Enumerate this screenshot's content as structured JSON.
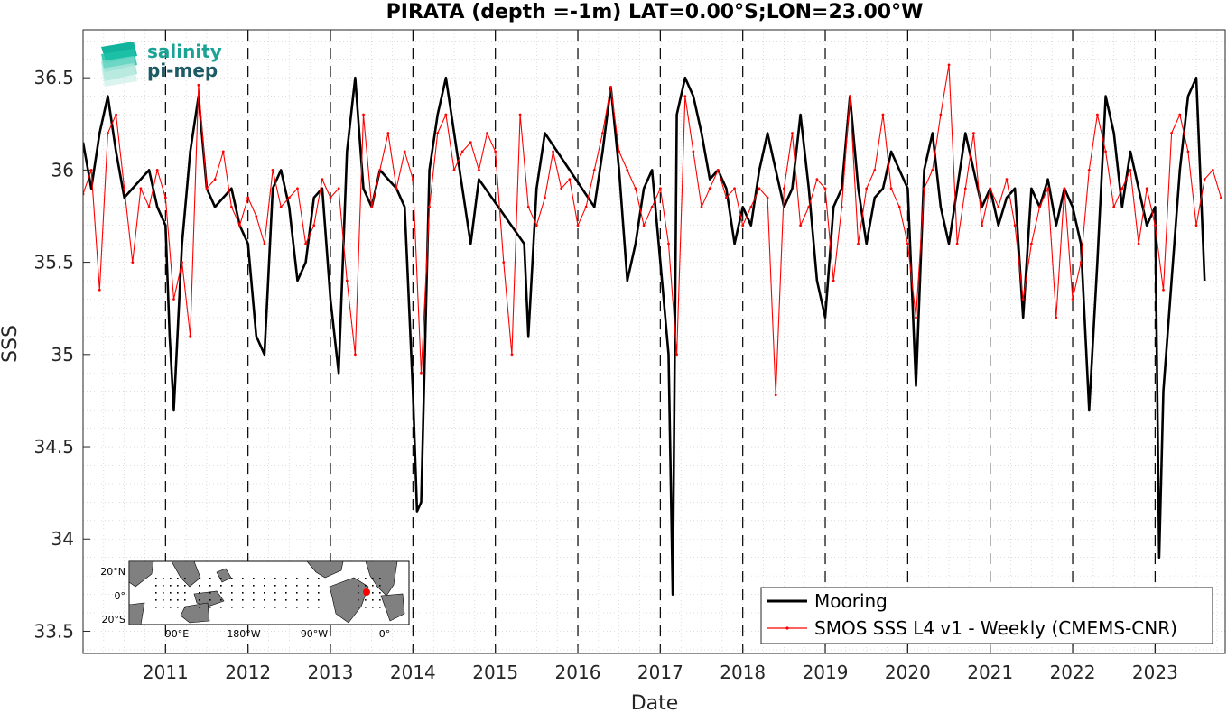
{
  "chart_data": {
    "type": "line",
    "title": "PIRATA (depth =-1m) LAT=0.00°S;LON=23.00°W",
    "xlabel": "Date",
    "ylabel": "SSS",
    "xlim": [
      2010.0,
      2023.85
    ],
    "ylim": [
      33.38,
      36.76
    ],
    "x_ticks": [
      2011,
      2012,
      2013,
      2014,
      2015,
      2016,
      2017,
      2018,
      2019,
      2020,
      2021,
      2022,
      2023
    ],
    "x_tick_labels": [
      "2011",
      "2012",
      "2013",
      "2014",
      "2015",
      "2016",
      "2017",
      "2018",
      "2019",
      "2020",
      "2021",
      "2022",
      "2023"
    ],
    "y_ticks": [
      33.5,
      34,
      34.5,
      35,
      35.5,
      36,
      36.5
    ],
    "y_tick_labels": [
      "33.5",
      "34",
      "34.5",
      "35",
      "35.5",
      "36",
      "36.5"
    ],
    "grid": "on (minor dotted grid, dashed black lines at each year)",
    "legend_position": "bottom-right",
    "series": [
      {
        "name": "Mooring",
        "color": "#000000",
        "x": [
          2010.0,
          2010.1,
          2010.2,
          2010.3,
          2010.4,
          2010.5,
          2010.6,
          2010.7,
          2010.8,
          2010.9,
          2011.0,
          2011.05,
          2011.1,
          2011.2,
          2011.3,
          2011.4,
          2011.5,
          2011.6,
          2011.7,
          2011.8,
          2011.9,
          2012.0,
          2012.1,
          2012.2,
          2012.3,
          2012.4,
          2012.5,
          2012.6,
          2012.7,
          2012.8,
          2012.9,
          2013.0,
          2013.1,
          2013.2,
          2013.3,
          2013.4,
          2013.5,
          2013.6,
          2013.7,
          2013.8,
          2013.9,
          2014.0,
          2014.05,
          2014.1,
          2014.2,
          2014.3,
          2014.4,
          2014.5,
          2014.6,
          2014.7,
          2014.8,
          2015.35,
          2015.4,
          2015.5,
          2015.6,
          2016.2,
          2016.3,
          2016.4,
          2016.5,
          2016.6,
          2016.7,
          2016.8,
          2016.9,
          2017.0,
          2017.1,
          2017.15,
          2017.2,
          2017.3,
          2017.4,
          2017.5,
          2017.6,
          2017.7,
          2017.8,
          2017.9,
          2018.0,
          2018.1,
          2018.2,
          2018.3,
          2018.4,
          2018.5,
          2018.6,
          2018.7,
          2018.8,
          2018.9,
          2019.0,
          2019.1,
          2019.2,
          2019.3,
          2019.4,
          2019.5,
          2019.6,
          2019.7,
          2019.8,
          2019.9,
          2020.0,
          2020.1,
          2020.2,
          2020.3,
          2020.4,
          2020.5,
          2020.6,
          2020.7,
          2020.8,
          2020.9,
          2021.0,
          2021.1,
          2021.2,
          2021.3,
          2021.4,
          2021.5,
          2021.6,
          2021.7,
          2021.8,
          2021.9,
          2022.0,
          2022.1,
          2022.2,
          2022.3,
          2022.4,
          2022.5,
          2022.6,
          2022.7,
          2022.8,
          2022.9,
          2023.0,
          2023.05,
          2023.1,
          2023.2,
          2023.3,
          2023.4,
          2023.5,
          2023.6
        ],
        "y": [
          36.15,
          35.9,
          36.2,
          36.4,
          36.1,
          35.85,
          35.9,
          35.95,
          36.0,
          35.8,
          35.7,
          35.1,
          34.7,
          35.6,
          36.1,
          36.4,
          35.9,
          35.8,
          35.85,
          35.9,
          35.7,
          35.6,
          35.1,
          35.0,
          35.9,
          36.0,
          35.8,
          35.4,
          35.5,
          35.85,
          35.9,
          35.3,
          34.9,
          36.1,
          36.5,
          35.9,
          35.8,
          36.0,
          35.95,
          35.9,
          35.8,
          34.8,
          34.15,
          34.2,
          36.0,
          36.3,
          36.5,
          36.2,
          35.9,
          35.6,
          35.95,
          35.6,
          35.1,
          35.9,
          36.2,
          35.8,
          36.1,
          36.45,
          36.0,
          35.4,
          35.6,
          35.9,
          36.0,
          35.5,
          35.0,
          33.7,
          36.3,
          36.5,
          36.4,
          36.2,
          35.95,
          36.0,
          35.9,
          35.6,
          35.8,
          35.7,
          36.0,
          36.2,
          36.0,
          35.8,
          35.9,
          36.3,
          35.9,
          35.4,
          35.2,
          35.8,
          35.9,
          36.4,
          35.9,
          35.6,
          35.85,
          35.9,
          36.1,
          36.0,
          35.9,
          34.83,
          36.0,
          36.2,
          35.8,
          35.6,
          35.9,
          36.2,
          36.0,
          35.8,
          35.9,
          35.7,
          35.85,
          35.9,
          35.2,
          35.9,
          35.8,
          35.95,
          35.7,
          35.9,
          35.8,
          35.6,
          34.7,
          35.5,
          36.4,
          36.2,
          35.8,
          36.1,
          35.9,
          35.7,
          35.8,
          33.9,
          34.8,
          35.4,
          36.0,
          36.4,
          36.5,
          35.4
        ]
      },
      {
        "name": "SMOS SSS L4 v1 - Weekly (CMEMS-CNR)",
        "color": "#ff0000",
        "x": [
          2010.0,
          2010.1,
          2010.2,
          2010.3,
          2010.4,
          2010.5,
          2010.6,
          2010.7,
          2010.8,
          2010.9,
          2011.0,
          2011.1,
          2011.2,
          2011.3,
          2011.4,
          2011.5,
          2011.6,
          2011.7,
          2011.8,
          2011.9,
          2012.0,
          2012.1,
          2012.2,
          2012.3,
          2012.4,
          2012.5,
          2012.6,
          2012.7,
          2012.8,
          2012.9,
          2013.0,
          2013.1,
          2013.2,
          2013.3,
          2013.4,
          2013.5,
          2013.6,
          2013.7,
          2013.8,
          2013.9,
          2014.0,
          2014.1,
          2014.2,
          2014.3,
          2014.4,
          2014.5,
          2014.6,
          2014.7,
          2014.8,
          2014.9,
          2015.0,
          2015.1,
          2015.2,
          2015.3,
          2015.4,
          2015.5,
          2015.6,
          2015.7,
          2015.8,
          2015.9,
          2016.0,
          2016.1,
          2016.2,
          2016.3,
          2016.4,
          2016.5,
          2016.6,
          2016.7,
          2016.8,
          2016.9,
          2017.0,
          2017.1,
          2017.2,
          2017.3,
          2017.4,
          2017.5,
          2017.6,
          2017.7,
          2017.8,
          2017.9,
          2018.0,
          2018.1,
          2018.2,
          2018.3,
          2018.4,
          2018.5,
          2018.6,
          2018.7,
          2018.8,
          2018.9,
          2019.0,
          2019.1,
          2019.2,
          2019.3,
          2019.4,
          2019.5,
          2019.6,
          2019.7,
          2019.8,
          2019.9,
          2020.0,
          2020.1,
          2020.2,
          2020.3,
          2020.4,
          2020.5,
          2020.6,
          2020.7,
          2020.8,
          2020.9,
          2021.0,
          2021.1,
          2021.2,
          2021.3,
          2021.4,
          2021.5,
          2021.6,
          2021.7,
          2021.8,
          2021.9,
          2022.0,
          2022.1,
          2022.2,
          2022.3,
          2022.4,
          2022.5,
          2022.6,
          2022.7,
          2022.8,
          2022.9,
          2023.0,
          2023.1,
          2023.2,
          2023.3,
          2023.4,
          2023.5,
          2023.6,
          2023.7,
          2023.8
        ],
        "y": [
          35.87,
          36.0,
          35.35,
          36.2,
          36.3,
          35.9,
          35.5,
          35.9,
          35.8,
          36.0,
          35.85,
          35.3,
          35.5,
          35.1,
          36.46,
          35.9,
          35.95,
          36.1,
          35.8,
          35.7,
          35.85,
          35.75,
          35.6,
          36.0,
          35.8,
          35.85,
          35.9,
          35.6,
          35.7,
          35.95,
          35.85,
          35.9,
          35.4,
          35.0,
          36.3,
          35.8,
          36.0,
          36.2,
          35.9,
          36.1,
          35.95,
          34.9,
          35.8,
          36.2,
          36.3,
          36.0,
          36.1,
          36.15,
          36.0,
          36.2,
          36.1,
          35.5,
          35.0,
          36.3,
          35.8,
          35.7,
          35.85,
          36.1,
          35.9,
          35.95,
          35.7,
          35.8,
          36.0,
          36.2,
          36.45,
          36.1,
          36.0,
          35.9,
          35.7,
          35.8,
          35.9,
          35.6,
          35.0,
          36.4,
          36.1,
          35.8,
          35.9,
          36.0,
          35.85,
          35.9,
          35.7,
          35.8,
          35.9,
          35.85,
          34.78,
          35.9,
          36.2,
          35.7,
          35.8,
          35.95,
          35.9,
          35.4,
          35.8,
          36.4,
          35.6,
          35.9,
          36.0,
          36.3,
          35.9,
          35.8,
          35.6,
          35.2,
          35.9,
          36.0,
          36.3,
          36.57,
          35.6,
          35.9,
          36.2,
          35.7,
          35.9,
          35.8,
          35.95,
          35.7,
          35.3,
          35.6,
          35.8,
          35.9,
          35.2,
          35.9,
          35.3,
          35.5,
          36.0,
          36.3,
          36.1,
          35.8,
          35.9,
          36.0,
          35.6,
          35.9,
          35.7,
          35.35,
          36.2,
          36.3,
          36.1,
          35.7,
          35.95,
          36.0,
          35.85
        ]
      }
    ]
  },
  "logo": {
    "line1": "salinity",
    "line2": "pi-mep"
  },
  "inset_map": {
    "lat_labels": [
      "20°N",
      "0°",
      "20°S"
    ],
    "lon_labels": [
      "90°E",
      "180°W",
      "90°W",
      "0°"
    ]
  }
}
